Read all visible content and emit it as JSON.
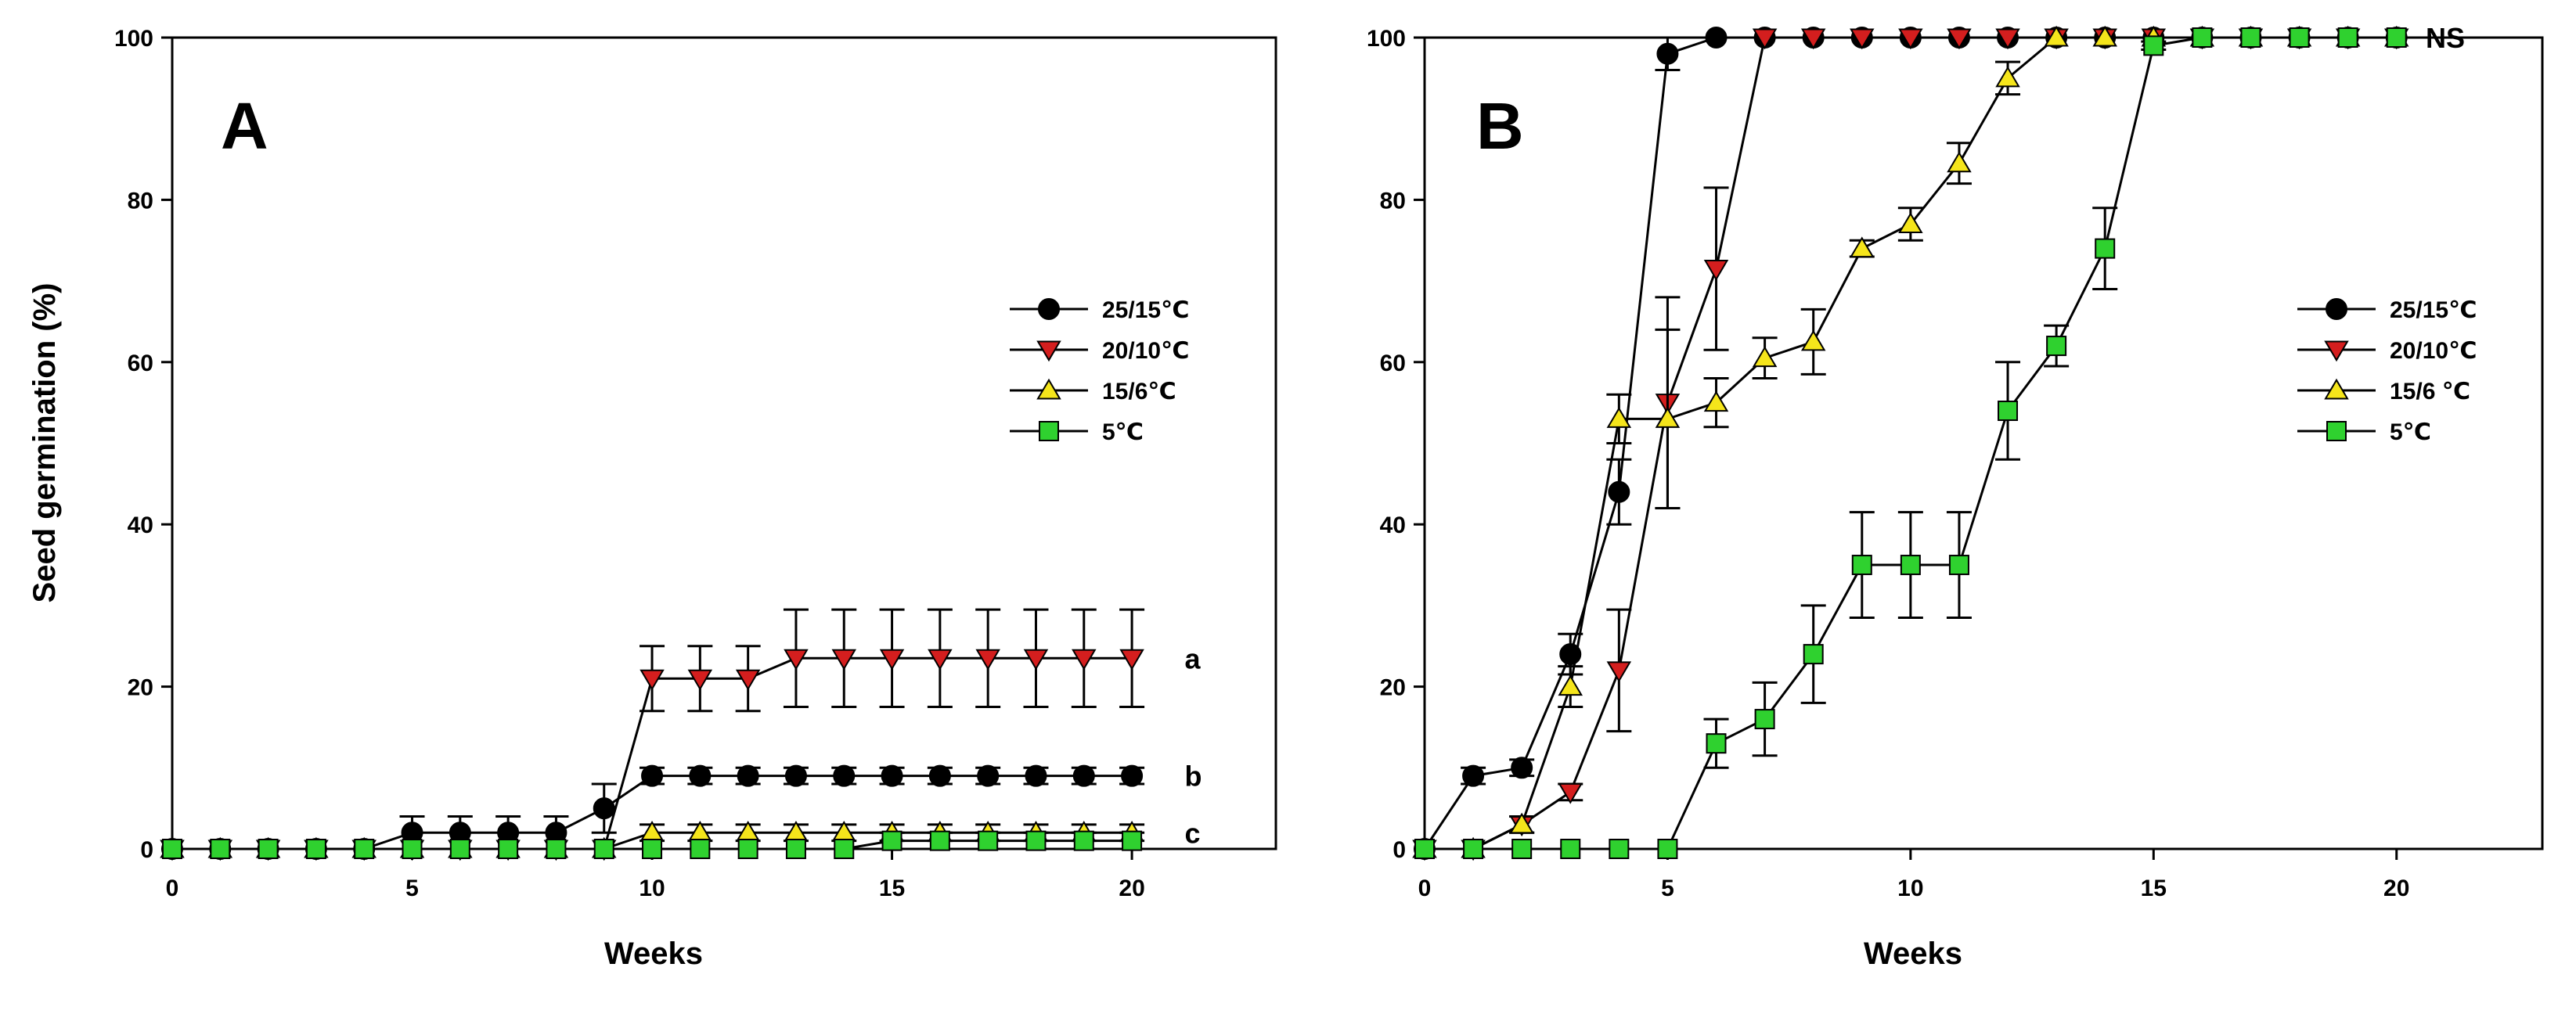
{
  "chart_data": [
    {
      "type": "line",
      "panel": "A",
      "xlabel": "Weeks",
      "ylabel": "Seed germination (%)",
      "xlim": [
        0,
        23
      ],
      "ylim": [
        0,
        100
      ],
      "xticks": [
        0,
        5,
        10,
        15,
        20
      ],
      "yticks": [
        0,
        20,
        40,
        60,
        80,
        100
      ],
      "legend_position": "right-middle",
      "x": [
        0,
        1,
        2,
        3,
        4,
        5,
        6,
        7,
        8,
        9,
        10,
        11,
        12,
        13,
        14,
        15,
        16,
        17,
        18,
        19,
        20
      ],
      "series": [
        {
          "name": "25/15℃",
          "marker": "circle",
          "color": "#000000",
          "values": [
            0,
            0,
            0,
            0,
            0,
            2,
            2,
            2,
            2,
            5,
            9,
            9,
            9,
            9,
            9,
            9,
            9,
            9,
            9,
            9,
            9
          ],
          "errors": [
            0,
            0,
            0,
            0,
            0,
            2,
            2,
            2,
            2,
            3,
            1,
            1,
            1,
            1,
            1,
            1,
            1,
            1,
            1,
            1,
            1
          ]
        },
        {
          "name": "20/10℃",
          "marker": "triangle-down",
          "color": "#d41e1e",
          "values": [
            0,
            0,
            0,
            0,
            0,
            0,
            0,
            0,
            0,
            0,
            21,
            21,
            21,
            23.5,
            23.5,
            23.5,
            23.5,
            23.5,
            23.5,
            23.5,
            23.5
          ],
          "errors": [
            0,
            0,
            0,
            0,
            0,
            0,
            0,
            0,
            0,
            0,
            4,
            4,
            4,
            6,
            6,
            6,
            6,
            6,
            6,
            6,
            6
          ]
        },
        {
          "name": "15/6℃",
          "marker": "triangle-up",
          "color": "#f5e51b",
          "values": [
            0,
            0,
            0,
            0,
            0,
            0,
            0,
            0,
            0,
            0,
            2,
            2,
            2,
            2,
            2,
            2,
            2,
            2,
            2,
            2,
            2
          ],
          "errors": [
            0,
            0,
            0,
            0,
            0,
            0,
            0,
            0,
            0,
            0,
            1,
            1,
            1,
            1,
            1,
            1,
            1,
            1,
            1,
            1,
            1
          ]
        },
        {
          "name": "5℃",
          "marker": "square",
          "color": "#2fd12f",
          "values": [
            0,
            0,
            0,
            0,
            0,
            0,
            0,
            0,
            0,
            0,
            0,
            0,
            0,
            0,
            0,
            1,
            1,
            1,
            1,
            1,
            1
          ],
          "errors": [
            0,
            0,
            0,
            0,
            0,
            0,
            0,
            0,
            0,
            0,
            0,
            0,
            0,
            0,
            0,
            1,
            1,
            1,
            1,
            1,
            1
          ]
        }
      ],
      "annotations": [
        {
          "text": "a",
          "x": 21.1,
          "y": 23.5
        },
        {
          "text": "b",
          "x": 21.1,
          "y": 9
        },
        {
          "text": "c",
          "x": 21.1,
          "y": 2
        }
      ]
    },
    {
      "type": "line",
      "panel": "B",
      "xlabel": "Weeks",
      "ylabel": "",
      "xlim": [
        0,
        23
      ],
      "ylim": [
        0,
        100
      ],
      "xticks": [
        0,
        5,
        10,
        15,
        20
      ],
      "yticks": [
        0,
        20,
        40,
        60,
        80,
        100
      ],
      "legend_position": "right-middle",
      "x": [
        0,
        1,
        2,
        3,
        4,
        5,
        6,
        7,
        8,
        9,
        10,
        11,
        12,
        13,
        14,
        15,
        16,
        17,
        18,
        19,
        20
      ],
      "series": [
        {
          "name": "25/15℃",
          "marker": "circle",
          "color": "#000000",
          "values": [
            0,
            9,
            10,
            24,
            44,
            98,
            100,
            100,
            100,
            100,
            100,
            100,
            100,
            100,
            100,
            100,
            100,
            100,
            100,
            100,
            100
          ],
          "errors": [
            0,
            1,
            1,
            2.5,
            4,
            2,
            0,
            0,
            0,
            0,
            0,
            0,
            0,
            0,
            0,
            0,
            0,
            0,
            0,
            0,
            0
          ]
        },
        {
          "name": "20/10℃",
          "marker": "triangle-down",
          "color": "#d41e1e",
          "values": [
            0,
            0,
            3,
            7,
            22,
            55,
            71.5,
            100,
            100,
            100,
            100,
            100,
            100,
            100,
            100,
            100,
            100,
            100,
            100,
            100,
            100
          ],
          "errors": [
            0,
            0,
            1,
            1,
            7.5,
            13,
            10,
            0,
            0,
            0,
            0,
            0,
            0,
            0,
            0,
            0,
            0,
            0,
            0,
            0,
            0
          ]
        },
        {
          "name": "15/6 ℃",
          "marker": "triangle-up",
          "color": "#f5e51b",
          "values": [
            0,
            0,
            3,
            20,
            53,
            53,
            55,
            60.5,
            62.5,
            74,
            77,
            84.5,
            95,
            100,
            100,
            100,
            100,
            100,
            100,
            100,
            100
          ],
          "errors": [
            0,
            0,
            1,
            2.5,
            3,
            11,
            3,
            2.5,
            4,
            1,
            2,
            2.5,
            2,
            0,
            0,
            0,
            0,
            0,
            0,
            0,
            0
          ]
        },
        {
          "name": "5℃",
          "marker": "square",
          "color": "#2fd12f",
          "values": [
            0,
            0,
            0,
            0,
            0,
            0,
            13,
            16,
            24,
            35,
            35,
            35,
            54,
            62,
            74,
            99,
            100,
            100,
            100,
            100,
            100
          ],
          "errors": [
            0,
            0,
            0,
            0,
            0,
            0,
            3,
            4.5,
            6,
            6.5,
            6.5,
            6.5,
            6,
            2.5,
            5,
            0.5,
            0,
            0,
            0,
            0,
            0
          ]
        }
      ],
      "annotations": [
        {
          "text": "NS",
          "x": 20.6,
          "y": 100
        }
      ]
    }
  ]
}
